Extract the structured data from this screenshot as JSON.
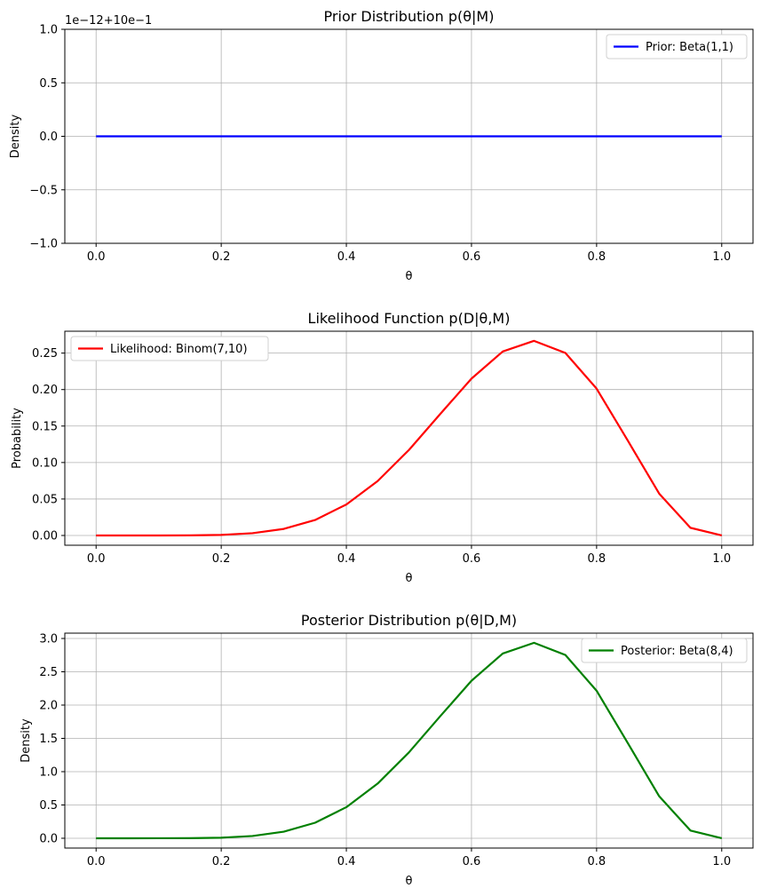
{
  "chart_data": [
    {
      "type": "line",
      "title": "Prior Distribution p(θ|M)",
      "xlabel": "θ",
      "ylabel": "Density",
      "offset_label": "1e−12+10e−1",
      "xlim": [
        -0.05,
        1.05
      ],
      "ylim": [
        -1.0,
        1.0
      ],
      "xticks": [
        0.0,
        0.2,
        0.4,
        0.6,
        0.8,
        1.0
      ],
      "xtick_labels": [
        "0.0",
        "0.2",
        "0.4",
        "0.6",
        "0.8",
        "1.0"
      ],
      "yticks": [
        -1.0,
        -0.5,
        0.0,
        0.5,
        1.0
      ],
      "ytick_labels": [
        "−1.0",
        "−0.5",
        "0.0",
        "0.5",
        "1.0"
      ],
      "grid": true,
      "legend": "top-right",
      "series": [
        {
          "name": "Prior: Beta(1,1)",
          "color": "#0000ff",
          "x": [
            0.0,
            1.0
          ],
          "y": [
            0.0,
            0.0
          ]
        }
      ]
    },
    {
      "type": "line",
      "title": "Likelihood Function p(D|θ,M)",
      "xlabel": "θ",
      "ylabel": "Probability",
      "xlim": [
        -0.05,
        1.05
      ],
      "ylim": [
        -0.0134,
        0.28
      ],
      "xticks": [
        0.0,
        0.2,
        0.4,
        0.6,
        0.8,
        1.0
      ],
      "xtick_labels": [
        "0.0",
        "0.2",
        "0.4",
        "0.6",
        "0.8",
        "1.0"
      ],
      "yticks": [
        0.0,
        0.05,
        0.1,
        0.15,
        0.2,
        0.25
      ],
      "ytick_labels": [
        "0.00",
        "0.05",
        "0.10",
        "0.15",
        "0.20",
        "0.25"
      ],
      "grid": true,
      "legend": "top-left",
      "series": [
        {
          "name": "Likelihood: Binom(7,10)",
          "color": "#ff0000",
          "x": [
            0.0,
            0.05,
            0.1,
            0.15,
            0.2,
            0.25,
            0.3,
            0.35,
            0.4,
            0.45,
            0.5,
            0.55,
            0.6,
            0.65,
            0.7,
            0.75,
            0.8,
            0.85,
            0.9,
            0.95,
            1.0
          ],
          "y": [
            0.0,
            0.0,
            0.0,
            0.0001,
            0.0008,
            0.0031,
            0.009,
            0.0212,
            0.0425,
            0.0746,
            0.1172,
            0.1665,
            0.215,
            0.2522,
            0.2668,
            0.2503,
            0.2013,
            0.1298,
            0.0574,
            0.0105,
            0.0
          ]
        }
      ]
    },
    {
      "type": "line",
      "title": "Posterior Distribution p(θ|D,M)",
      "xlabel": "θ",
      "ylabel": "Density",
      "xlim": [
        -0.05,
        1.05
      ],
      "ylim": [
        -0.147,
        3.08
      ],
      "xticks": [
        0.0,
        0.2,
        0.4,
        0.6,
        0.8,
        1.0
      ],
      "xtick_labels": [
        "0.0",
        "0.2",
        "0.4",
        "0.6",
        "0.8",
        "1.0"
      ],
      "yticks": [
        0.0,
        0.5,
        1.0,
        1.5,
        2.0,
        2.5,
        3.0
      ],
      "ytick_labels": [
        "0.0",
        "0.5",
        "1.0",
        "1.5",
        "2.0",
        "2.5",
        "3.0"
      ],
      "grid": true,
      "legend": "top-right",
      "series": [
        {
          "name": "Posterior: Beta(8,4)",
          "color": "#008000",
          "x": [
            0.0,
            0.05,
            0.1,
            0.15,
            0.2,
            0.25,
            0.3,
            0.35,
            0.4,
            0.45,
            0.5,
            0.55,
            0.6,
            0.65,
            0.7,
            0.75,
            0.8,
            0.85,
            0.9,
            0.95,
            1.0
          ],
          "y": [
            0.0,
            0.0,
            0.0003,
            0.0016,
            0.0084,
            0.034,
            0.099,
            0.233,
            0.467,
            0.821,
            1.289,
            1.832,
            2.365,
            2.774,
            2.935,
            2.753,
            2.215,
            1.428,
            0.631,
            0.116,
            0.0
          ]
        }
      ]
    }
  ]
}
